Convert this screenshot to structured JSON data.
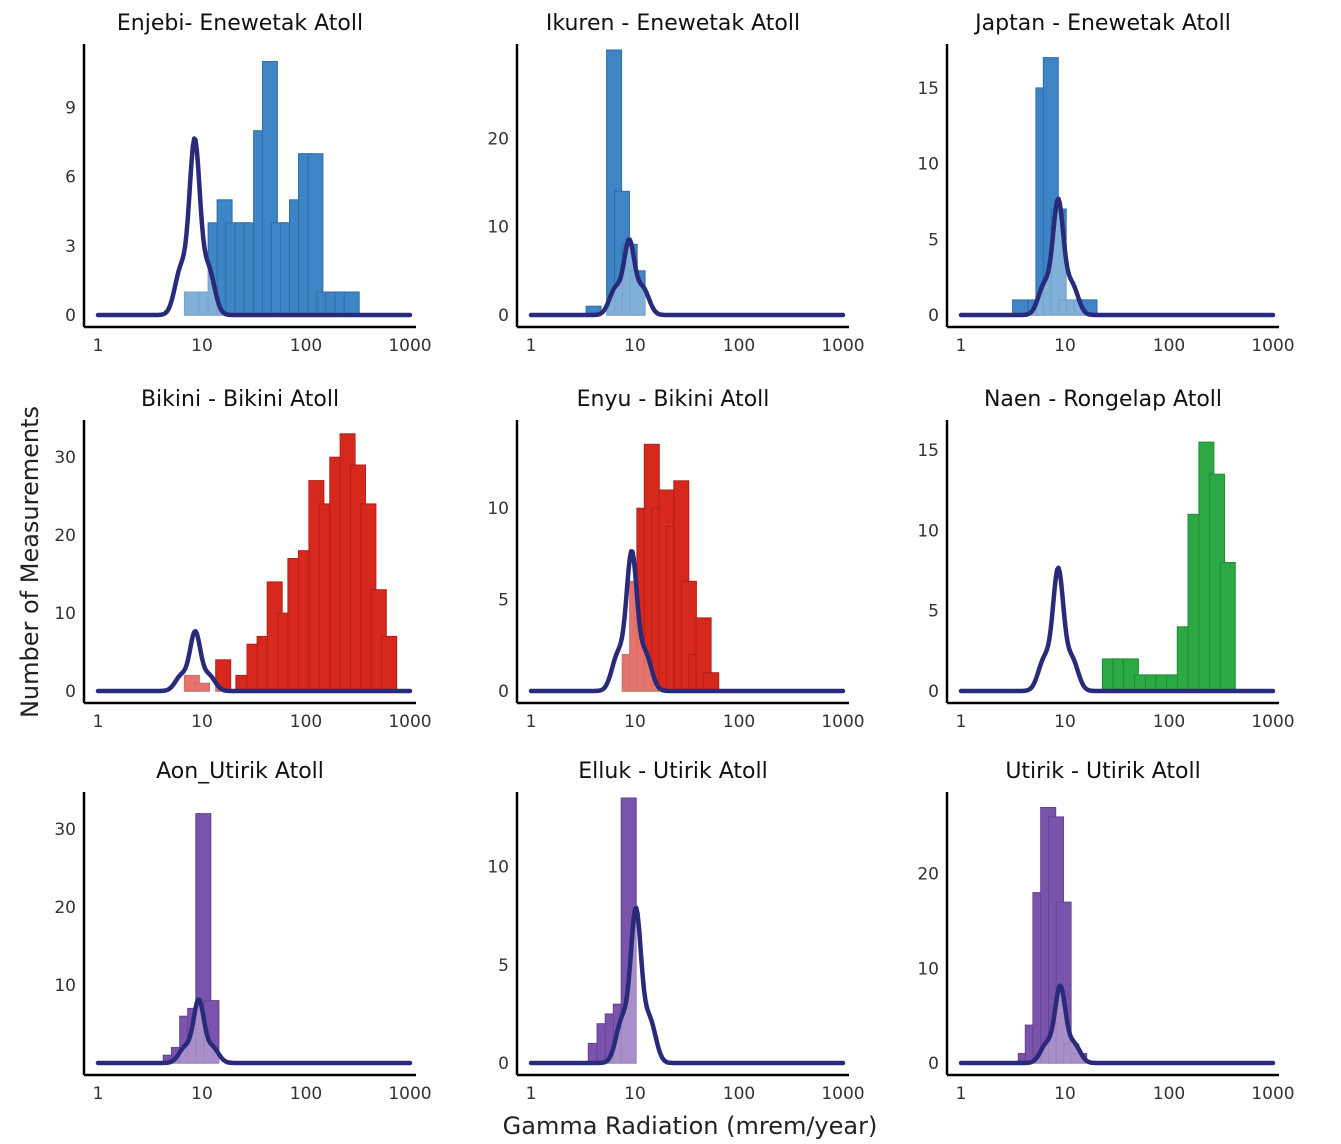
{
  "figure": {
    "ylabel": "Number of Measurements",
    "xlabel": "Gamma Radiation (mrem/year)"
  },
  "chart_data": [
    {
      "type": "bar",
      "title": "Enjebi- Enewetak Atoll",
      "color": "#3d85c6",
      "x_scale": "log",
      "xlim": [
        1,
        1000
      ],
      "ylim": [
        0,
        11.5
      ],
      "x_ticks": [
        "1",
        "10",
        "100",
        "1000"
      ],
      "y_ticks": [
        "0",
        "3",
        "6",
        "9"
      ],
      "bins": [
        {
          "x": 8.0,
          "y": 1
        },
        {
          "x": 11.0,
          "y": 1
        },
        {
          "x": 13.5,
          "y": 4
        },
        {
          "x": 16.5,
          "y": 5
        },
        {
          "x": 20.0,
          "y": 4
        },
        {
          "x": 24.5,
          "y": 4
        },
        {
          "x": 30.0,
          "y": 4
        },
        {
          "x": 37.0,
          "y": 8
        },
        {
          "x": 45.0,
          "y": 11
        },
        {
          "x": 55.0,
          "y": 4
        },
        {
          "x": 67.0,
          "y": 4
        },
        {
          "x": 82.0,
          "y": 5
        },
        {
          "x": 100.0,
          "y": 7
        },
        {
          "x": 123.0,
          "y": 7
        },
        {
          "x": 150.0,
          "y": 1
        },
        {
          "x": 183.0,
          "y": 1
        },
        {
          "x": 225.0,
          "y": 1
        },
        {
          "x": 275.0,
          "y": 1
        }
      ],
      "reference_curve": {
        "peak": 7.3,
        "center": 8.5,
        "shoulder_height": 2.0
      }
    },
    {
      "type": "bar",
      "title": "Ikuren - Enewetak Atoll",
      "color": "#3d85c6",
      "x_scale": "log",
      "xlim": [
        1,
        1000
      ],
      "ylim": [
        0,
        30
      ],
      "x_ticks": [
        "1",
        "10",
        "100",
        "1000"
      ],
      "y_ticks": [
        "0",
        "10",
        "20"
      ],
      "bins": [
        {
          "x": 4.0,
          "y": 1
        },
        {
          "x": 6.3,
          "y": 30
        },
        {
          "x": 7.5,
          "y": 14
        },
        {
          "x": 8.9,
          "y": 8
        },
        {
          "x": 10.6,
          "y": 5
        }
      ],
      "reference_curve": {
        "peak": 8.0,
        "center": 8.8,
        "shoulder_height": 3.0
      }
    },
    {
      "type": "bar",
      "title": "Japtan - Enewetak Atoll",
      "color": "#3d85c6",
      "x_scale": "log",
      "xlim": [
        1,
        1000
      ],
      "ylim": [
        0,
        17.5
      ],
      "x_ticks": [
        "1",
        "10",
        "100",
        "1000"
      ],
      "y_ticks": [
        "0",
        "5",
        "10",
        "15"
      ],
      "bins": [
        {
          "x": 3.7,
          "y": 1
        },
        {
          "x": 5.2,
          "y": 1
        },
        {
          "x": 6.2,
          "y": 15
        },
        {
          "x": 7.3,
          "y": 17
        },
        {
          "x": 8.7,
          "y": 7
        },
        {
          "x": 10.3,
          "y": 1
        },
        {
          "x": 12.2,
          "y": 1
        },
        {
          "x": 14.5,
          "y": 1
        },
        {
          "x": 17.2,
          "y": 1
        }
      ],
      "reference_curve": {
        "peak": 7.3,
        "center": 8.6,
        "shoulder_height": 2.0
      }
    },
    {
      "type": "bar",
      "title": "Bikini - Bikini Atoll",
      "color": "#d7281e",
      "x_scale": "log",
      "xlim": [
        1,
        1000
      ],
      "ylim": [
        0,
        34
      ],
      "x_ticks": [
        "1",
        "10",
        "100",
        "1000"
      ],
      "y_ticks": [
        "0",
        "10",
        "20",
        "30"
      ],
      "bins": [
        {
          "x": 8.0,
          "y": 2
        },
        {
          "x": 10.0,
          "y": 1
        },
        {
          "x": 16.0,
          "y": 4
        },
        {
          "x": 25.0,
          "y": 2
        },
        {
          "x": 32.0,
          "y": 6
        },
        {
          "x": 40.0,
          "y": 7
        },
        {
          "x": 50.0,
          "y": 14
        },
        {
          "x": 63.0,
          "y": 10
        },
        {
          "x": 79.0,
          "y": 17
        },
        {
          "x": 100.0,
          "y": 18
        },
        {
          "x": 126.0,
          "y": 27
        },
        {
          "x": 158.0,
          "y": 24
        },
        {
          "x": 200.0,
          "y": 30
        },
        {
          "x": 251.0,
          "y": 33
        },
        {
          "x": 316.0,
          "y": 29
        },
        {
          "x": 398.0,
          "y": 24
        },
        {
          "x": 501.0,
          "y": 13
        },
        {
          "x": 631.0,
          "y": 7
        }
      ],
      "reference_curve": {
        "peak": 7.3,
        "center": 8.6,
        "shoulder_height": 2.0
      }
    },
    {
      "type": "bar",
      "title": "Enyu - Bikini Atoll",
      "color": "#d7281e",
      "x_scale": "log",
      "xlim": [
        1,
        1000
      ],
      "ylim": [
        0,
        14.5
      ],
      "x_ticks": [
        "1",
        "10",
        "100",
        "1000"
      ],
      "y_ticks": [
        "0",
        "5",
        "10"
      ],
      "bins": [
        {
          "x": 8.9,
          "y": 2
        },
        {
          "x": 10.5,
          "y": 6
        },
        {
          "x": 12.3,
          "y": 10
        },
        {
          "x": 14.5,
          "y": 13.5
        },
        {
          "x": 17.1,
          "y": 10
        },
        {
          "x": 20.1,
          "y": 11
        },
        {
          "x": 23.7,
          "y": 9
        },
        {
          "x": 27.9,
          "y": 11.5
        },
        {
          "x": 33.0,
          "y": 6
        },
        {
          "x": 38.8,
          "y": 2
        },
        {
          "x": 45.7,
          "y": 4
        },
        {
          "x": 54.0,
          "y": 1
        }
      ],
      "reference_curve": {
        "peak": 7.3,
        "center": 9.3,
        "shoulder_height": 2.0
      }
    },
    {
      "type": "bar",
      "title": "Naen - Rongelap Atoll",
      "color": "#2ca845",
      "x_scale": "log",
      "xlim": [
        1,
        1000
      ],
      "ylim": [
        0,
        16.5
      ],
      "x_ticks": [
        "1",
        "10",
        "100",
        "1000"
      ],
      "y_ticks": [
        "0",
        "5",
        "10",
        "15"
      ],
      "bins": [
        {
          "x": 27.0,
          "y": 2
        },
        {
          "x": 34.0,
          "y": 2
        },
        {
          "x": 43.0,
          "y": 2
        },
        {
          "x": 55.0,
          "y": 1
        },
        {
          "x": 70.0,
          "y": 1
        },
        {
          "x": 88.0,
          "y": 1
        },
        {
          "x": 112.0,
          "y": 1
        },
        {
          "x": 142.0,
          "y": 4
        },
        {
          "x": 180.0,
          "y": 11
        },
        {
          "x": 229.0,
          "y": 15.5
        },
        {
          "x": 290.0,
          "y": 13.5
        },
        {
          "x": 368.0,
          "y": 8
        }
      ],
      "reference_curve": {
        "peak": 7.3,
        "center": 8.6,
        "shoulder_height": 2.0
      }
    },
    {
      "type": "bar",
      "title": "Aon_Utirik Atoll",
      "color": "#7a53ad",
      "x_scale": "log",
      "xlim": [
        1,
        1000
      ],
      "ylim": [
        0,
        34
      ],
      "x_ticks": [
        "1",
        "10",
        "100",
        "1000"
      ],
      "y_ticks": [
        "10",
        "20",
        "30"
      ],
      "bins": [
        {
          "x": 5.0,
          "y": 1
        },
        {
          "x": 6.0,
          "y": 2
        },
        {
          "x": 7.2,
          "y": 6
        },
        {
          "x": 8.6,
          "y": 7
        },
        {
          "x": 10.3,
          "y": 32
        },
        {
          "x": 12.3,
          "y": 8
        }
      ],
      "reference_curve": {
        "peak": 7.8,
        "center": 9.3,
        "shoulder_height": 2.0
      }
    },
    {
      "type": "bar",
      "title": "Elluk - Utirik Atoll",
      "color": "#7a53ad",
      "x_scale": "log",
      "xlim": [
        1,
        1000
      ],
      "ylim": [
        0,
        13.5
      ],
      "x_ticks": [
        "1",
        "10",
        "100",
        "1000"
      ],
      "y_ticks": [
        "0",
        "5",
        "10"
      ],
      "bins": [
        {
          "x": 4.2,
          "y": 1
        },
        {
          "x": 5.1,
          "y": 2
        },
        {
          "x": 6.1,
          "y": 2.5
        },
        {
          "x": 7.3,
          "y": 3
        },
        {
          "x": 8.7,
          "y": 13.5
        }
      ],
      "reference_curve": {
        "peak": 7.5,
        "center": 10.2,
        "shoulder_height": 2.2
      }
    },
    {
      "type": "bar",
      "title": "Utirik - Utirik Atoll",
      "color": "#7a53ad",
      "x_scale": "log",
      "xlim": [
        1,
        1000
      ],
      "ylim": [
        0,
        28
      ],
      "x_ticks": [
        "1",
        "10",
        "100",
        "1000"
      ],
      "y_ticks": [
        "0",
        "10",
        "20"
      ],
      "bins": [
        {
          "x": 4.2,
          "y": 1
        },
        {
          "x": 4.9,
          "y": 4
        },
        {
          "x": 5.8,
          "y": 18
        },
        {
          "x": 6.9,
          "y": 27
        },
        {
          "x": 8.2,
          "y": 26
        },
        {
          "x": 9.7,
          "y": 17
        },
        {
          "x": 11.5,
          "y": 2
        },
        {
          "x": 13.7,
          "y": 1
        }
      ],
      "reference_curve": {
        "peak": 7.8,
        "center": 9.0,
        "shoulder_height": 2.0
      }
    }
  ]
}
